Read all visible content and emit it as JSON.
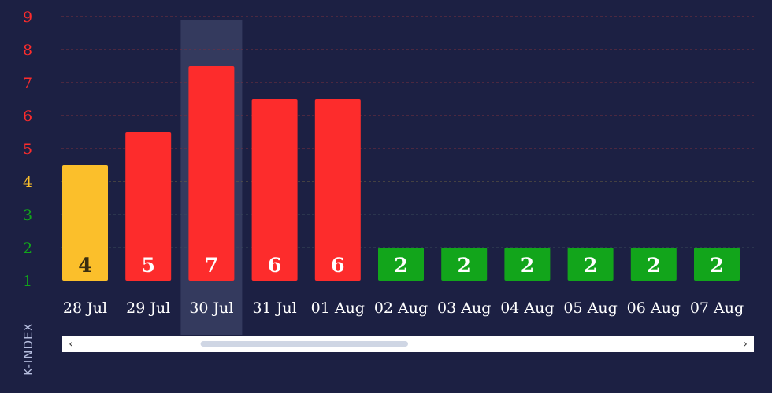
{
  "chart_data": {
    "type": "bar",
    "title": "",
    "xlabel": "",
    "ylabel": "K-INDEX",
    "categories": [
      "28 Jul",
      "29 Jul",
      "30 Jul",
      "31 Jul",
      "01 Aug",
      "02 Aug",
      "03 Aug",
      "04 Aug",
      "05 Aug",
      "06 Aug",
      "07 Aug"
    ],
    "values": [
      4,
      5,
      7,
      6,
      6,
      2,
      2,
      2,
      2,
      2,
      2
    ],
    "bar_fill_levels": [
      4.5,
      5.5,
      7.5,
      6.5,
      6.5,
      2,
      2,
      2,
      2,
      2,
      2
    ],
    "value_labels": [
      "4",
      "5",
      "7",
      "6",
      "6",
      "2",
      "2",
      "2",
      "2",
      "2",
      "2"
    ],
    "yticks": [
      "1",
      "2",
      "3",
      "4",
      "5",
      "6",
      "7",
      "8",
      "9"
    ],
    "ylim": [
      1,
      9
    ],
    "highlighted_category": "30 Jul",
    "grid": true,
    "legend": "none",
    "colors": {
      "background": "#1c2043",
      "low": "#12a51b",
      "moderate": "#fbbf2b",
      "high": "#fd2c2c",
      "gridline_red": "#7a2f3e",
      "gridline_yellow": "#6b6240",
      "highlight_band": "#343a5e",
      "scrollbar_track": "#ffffff",
      "scrollbar_thumb": "#cfd6e4",
      "axis_title": "#b6bedf"
    },
    "scrollbar": {
      "left_arrow": "‹",
      "right_arrow": "›",
      "thumb_start_fraction": 0.2,
      "thumb_end_fraction": 0.5
    }
  }
}
